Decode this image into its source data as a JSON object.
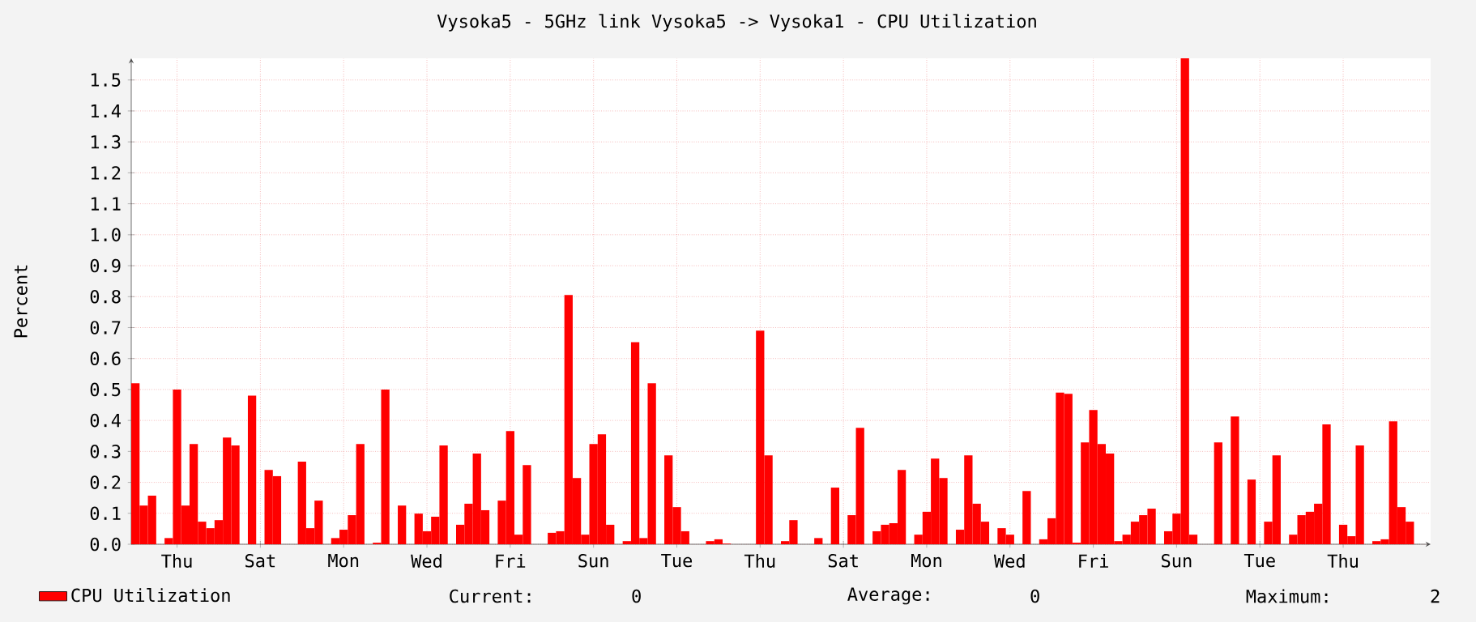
{
  "chart_data": {
    "type": "bar",
    "title": "Vysoka5 - 5GHz link Vysoka5 -> Vysoka1 - CPU Utilization",
    "ylabel": "Percent",
    "categories": [
      null,
      null,
      null,
      null,
      null,
      "Thu",
      null,
      null,
      null,
      null,
      null,
      null,
      null,
      null,
      null,
      "Sat",
      null,
      null,
      null,
      null,
      null,
      null,
      null,
      null,
      null,
      "Mon",
      null,
      null,
      null,
      null,
      null,
      null,
      null,
      null,
      null,
      "Wed",
      null,
      null,
      null,
      null,
      null,
      null,
      null,
      null,
      null,
      "Fri",
      null,
      null,
      null,
      null,
      null,
      null,
      null,
      null,
      null,
      "Sun",
      null,
      null,
      null,
      null,
      null,
      null,
      null,
      null,
      null,
      "Tue",
      null,
      null,
      null,
      null,
      null,
      null,
      null,
      null,
      null,
      "Thu",
      null,
      null,
      null,
      null,
      null,
      null,
      null,
      null,
      null,
      "Sat",
      null,
      null,
      null,
      null,
      null,
      null,
      null,
      null,
      null,
      "Mon",
      null,
      null,
      null,
      null,
      null,
      null,
      null,
      null,
      null,
      "Wed",
      null,
      null,
      null,
      null,
      null,
      null,
      null,
      null,
      null,
      "Fri",
      null,
      null,
      null,
      null,
      null,
      null,
      null,
      null,
      null,
      "Sun",
      null,
      null,
      null,
      null,
      null,
      null,
      null,
      null,
      null,
      "Tue",
      null,
      null,
      null,
      null,
      null,
      null,
      null,
      null,
      null,
      "Thu",
      null,
      null,
      null,
      null,
      null,
      null,
      null,
      null,
      null,
      null
    ],
    "series": [
      {
        "name": "CPU Utilization",
        "color": "#ff0000",
        "values": [
          0.52,
          0.125,
          0.157,
          0,
          0.02,
          0.5,
          0.125,
          0.324,
          0.073,
          0.052,
          0.078,
          0.345,
          0.319,
          0,
          0.48,
          0,
          0.24,
          0.22,
          0,
          0,
          0.267,
          0.052,
          0.141,
          0,
          0.02,
          0.047,
          0.094,
          0.324,
          0,
          0.005,
          0.5,
          0,
          0.125,
          0,
          0.099,
          0.042,
          0.089,
          0.319,
          0,
          0.063,
          0.131,
          0.293,
          0.11,
          0,
          0.141,
          0.366,
          0.031,
          0.256,
          0,
          0,
          0.037,
          0.042,
          0.805,
          0.214,
          0.031,
          0.324,
          0.355,
          0.063,
          0,
          0.01,
          0.653,
          0.02,
          0.52,
          0,
          0.287,
          0.12,
          0.042,
          0,
          0,
          0.01,
          0.016,
          0.002,
          0,
          0,
          0,
          0.69,
          0.287,
          0,
          0.01,
          0.078,
          0,
          0,
          0.02,
          0,
          0.183,
          0,
          0.094,
          0.376,
          0,
          0.042,
          0.063,
          0.068,
          0.24,
          0,
          0.031,
          0.105,
          0.277,
          0.214,
          0,
          0.047,
          0.287,
          0.131,
          0.073,
          0,
          0.052,
          0.031,
          0,
          0.172,
          0,
          0.016,
          0.084,
          0.49,
          0.486,
          0.005,
          0.329,
          0.434,
          0.324,
          0.293,
          0.01,
          0.031,
          0.073,
          0.094,
          0.115,
          0,
          0.042,
          0.099,
          1.57,
          0.031,
          0,
          0,
          0.329,
          0,
          0.413,
          0,
          0.209,
          0,
          0.073,
          0.287,
          0,
          0.031,
          0.094,
          0.105,
          0.131,
          0.387,
          0,
          0.063,
          0.026,
          0.319,
          0,
          0.01,
          0.016,
          0.397,
          0.12,
          0.073,
          0,
          0
        ]
      }
    ],
    "ylim": [
      0,
      1.57
    ],
    "yticks": [
      {
        "value": 0,
        "label": "0.0"
      },
      {
        "value": 0.1,
        "label": "0.1"
      },
      {
        "value": 0.2,
        "label": "0.2"
      },
      {
        "value": 0.3,
        "label": "0.3"
      },
      {
        "value": 0.4,
        "label": "0.4"
      },
      {
        "value": 0.5,
        "label": "0.5"
      },
      {
        "value": 0.6,
        "label": "0.6"
      },
      {
        "value": 0.7,
        "label": "0.7"
      },
      {
        "value": 0.8,
        "label": "0.8"
      },
      {
        "value": 0.9,
        "label": "0.9"
      },
      {
        "value": 1.0,
        "label": "1.0"
      },
      {
        "value": 1.1,
        "label": "1.1"
      },
      {
        "value": 1.2,
        "label": "1.2"
      },
      {
        "value": 1.3,
        "label": "1.3"
      },
      {
        "value": 1.4,
        "label": "1.4"
      },
      {
        "value": 1.5,
        "label": "1.5"
      }
    ],
    "grid": true,
    "legend": "bottom",
    "annotations": [
      "Current:",
      "0",
      "Average:",
      "0",
      "Maximum:",
      "2"
    ]
  }
}
